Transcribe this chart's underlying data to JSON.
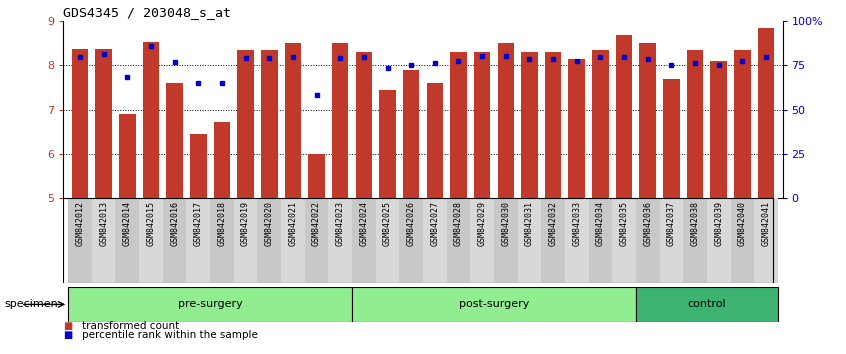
{
  "title": "GDS4345 / 203048_s_at",
  "samples": [
    "GSM842012",
    "GSM842013",
    "GSM842014",
    "GSM842015",
    "GSM842016",
    "GSM842017",
    "GSM842018",
    "GSM842019",
    "GSM842020",
    "GSM842021",
    "GSM842022",
    "GSM842023",
    "GSM842024",
    "GSM842025",
    "GSM842026",
    "GSM842027",
    "GSM842028",
    "GSM842029",
    "GSM842030",
    "GSM842031",
    "GSM842032",
    "GSM842033",
    "GSM842034",
    "GSM842035",
    "GSM842036",
    "GSM842037",
    "GSM842038",
    "GSM842039",
    "GSM842040",
    "GSM842041"
  ],
  "red_values": [
    8.38,
    8.38,
    6.9,
    8.52,
    7.6,
    6.45,
    6.72,
    8.35,
    8.35,
    8.5,
    6.0,
    8.5,
    8.3,
    7.45,
    7.9,
    7.6,
    8.3,
    8.3,
    8.5,
    8.3,
    8.3,
    8.15,
    8.35,
    8.68,
    8.5,
    7.7,
    8.35,
    8.1,
    8.35,
    8.85
  ],
  "blue_values": [
    8.2,
    8.25,
    7.73,
    8.45,
    8.08,
    7.6,
    7.6,
    8.18,
    8.18,
    8.2,
    7.33,
    8.18,
    8.2,
    7.95,
    8.0,
    8.05,
    8.1,
    8.22,
    8.22,
    8.15,
    8.15,
    8.1,
    8.2,
    8.2,
    8.15,
    8.0,
    8.05,
    8.0,
    8.1,
    8.2
  ],
  "groups": [
    {
      "label": "pre-surgery",
      "start": 0,
      "end": 12,
      "color": "#90EE90"
    },
    {
      "label": "post-surgery",
      "start": 12,
      "end": 24,
      "color": "#90EE90"
    },
    {
      "label": "control",
      "start": 24,
      "end": 30,
      "color": "#3CB371"
    }
  ],
  "ylim": [
    5,
    9
  ],
  "yticks": [
    5,
    6,
    7,
    8,
    9
  ],
  "right_ytick_positions": [
    5.0,
    6.0,
    7.0,
    8.0,
    9.0
  ],
  "right_ytick_labels": [
    "0",
    "25",
    "50",
    "75",
    "100%"
  ],
  "bar_color": "#C0392B",
  "dot_color": "#0000CD",
  "grid_color": "black",
  "tick_label_color_left": "#C0392B",
  "tick_label_color_right": "#0000CD",
  "specimen_label": "specimen",
  "legend_items": [
    "transformed count",
    "percentile rank within the sample"
  ],
  "legend_colors": [
    "#C0392B",
    "#0000CD"
  ],
  "xtick_bg_even": "#C8C8C8",
  "xtick_bg_odd": "#D8D8D8"
}
